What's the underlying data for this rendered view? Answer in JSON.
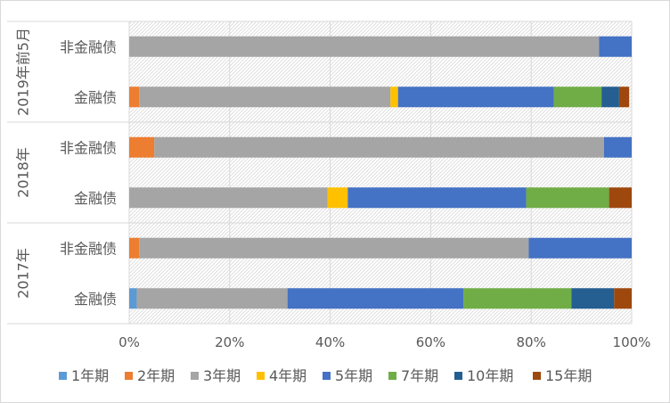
{
  "chart_data": {
    "type": "bar",
    "orientation": "horizontal",
    "stacked": true,
    "percent": true,
    "title": "",
    "xlabel": "",
    "ylabel": "",
    "xlim": [
      0,
      100
    ],
    "x_ticks": [
      "0%",
      "20%",
      "40%",
      "60%",
      "80%",
      "100%"
    ],
    "legend_position": "bottom",
    "grid": true,
    "groups": [
      {
        "label": "2019年前5月",
        "categories": [
          "非金融债",
          "金融债"
        ]
      },
      {
        "label": "2018年",
        "categories": [
          "非金融债",
          "金融债"
        ]
      },
      {
        "label": "2017年",
        "categories": [
          "非金融债",
          "金融债"
        ]
      }
    ],
    "series": [
      {
        "name": "1年期",
        "color": "#5B9BD5",
        "values": [
          0,
          0,
          0,
          0,
          0,
          1.5
        ]
      },
      {
        "name": "2年期",
        "color": "#ED7D31",
        "values": [
          0,
          2,
          5,
          0,
          2,
          0
        ]
      },
      {
        "name": "3年期",
        "color": "#A5A5A5",
        "values": [
          93.5,
          50,
          89.5,
          39.5,
          77.5,
          30
        ]
      },
      {
        "name": "4年期",
        "color": "#FFC000",
        "values": [
          0,
          1.5,
          0,
          4,
          0,
          0
        ]
      },
      {
        "name": "5年期",
        "color": "#4472C4",
        "values": [
          6.5,
          31,
          5.5,
          35.5,
          20.5,
          35
        ]
      },
      {
        "name": "7年期",
        "color": "#70AD47",
        "values": [
          0,
          9.5,
          0,
          16.5,
          0,
          21.5
        ]
      },
      {
        "name": "10年期",
        "color": "#255E91",
        "values": [
          0,
          3.5,
          0,
          0,
          0,
          8.5
        ]
      },
      {
        "name": "15年期",
        "color": "#9E480E",
        "values": [
          0,
          2,
          0,
          4.5,
          0,
          3.5
        ]
      }
    ]
  }
}
